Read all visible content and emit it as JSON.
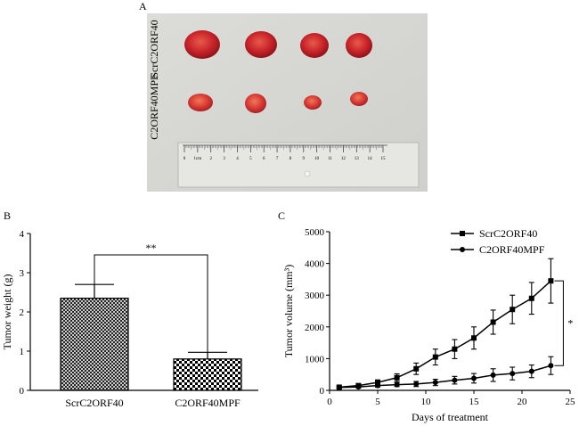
{
  "panels": {
    "a": "A",
    "b": "B",
    "c": "C"
  },
  "photo": {
    "row_labels": [
      "ScrC2ORF40",
      "C2ORF40MPF"
    ],
    "ruler_unit": "1cm",
    "ruler_ticks": [
      "0",
      "1cm",
      "2",
      "3",
      "4",
      "5",
      "6",
      "7",
      "8",
      "9",
      "10",
      "11",
      "12",
      "13",
      "14",
      "15"
    ]
  },
  "chart_data": [
    {
      "id": "B",
      "type": "bar",
      "title": "",
      "categories": [
        "ScrC2ORF40",
        "C2ORF40MPF"
      ],
      "values": [
        2.35,
        0.8
      ],
      "errors": [
        0.35,
        0.17
      ],
      "xlabel": "",
      "ylabel": "Tumor weight (g)",
      "ylim": [
        0,
        4
      ],
      "yticks": [
        "0",
        "1",
        "2",
        "3",
        "4"
      ],
      "significance": "**",
      "patterns": [
        "crosshatch",
        "checkerboard"
      ]
    },
    {
      "id": "C",
      "type": "line",
      "title": "",
      "xlabel": "Days of treatment",
      "ylabel": "Tumor volume (mm³)",
      "xlim": [
        0,
        25
      ],
      "ylim": [
        0,
        5000
      ],
      "xticks": [
        "0",
        "5",
        "10",
        "15",
        "20",
        "25"
      ],
      "yticks": [
        "0",
        "1000",
        "2000",
        "3000",
        "4000",
        "5000"
      ],
      "x": [
        1,
        3,
        5,
        7,
        9,
        11,
        13,
        15,
        17,
        19,
        21,
        23
      ],
      "series": [
        {
          "name": "ScrC2ORF40",
          "marker": "square",
          "values": [
            100,
            150,
            250,
            400,
            680,
            1050,
            1300,
            1650,
            2150,
            2550,
            2900,
            3450
          ],
          "errors": [
            40,
            50,
            80,
            120,
            180,
            250,
            300,
            350,
            380,
            450,
            500,
            700
          ]
        },
        {
          "name": "C2ORF40MPF",
          "marker": "circle",
          "values": [
            90,
            110,
            150,
            180,
            200,
            250,
            320,
            380,
            480,
            530,
            600,
            780
          ],
          "errors": [
            30,
            40,
            50,
            60,
            80,
            100,
            120,
            150,
            200,
            200,
            200,
            280
          ]
        }
      ],
      "significance": "*"
    }
  ]
}
